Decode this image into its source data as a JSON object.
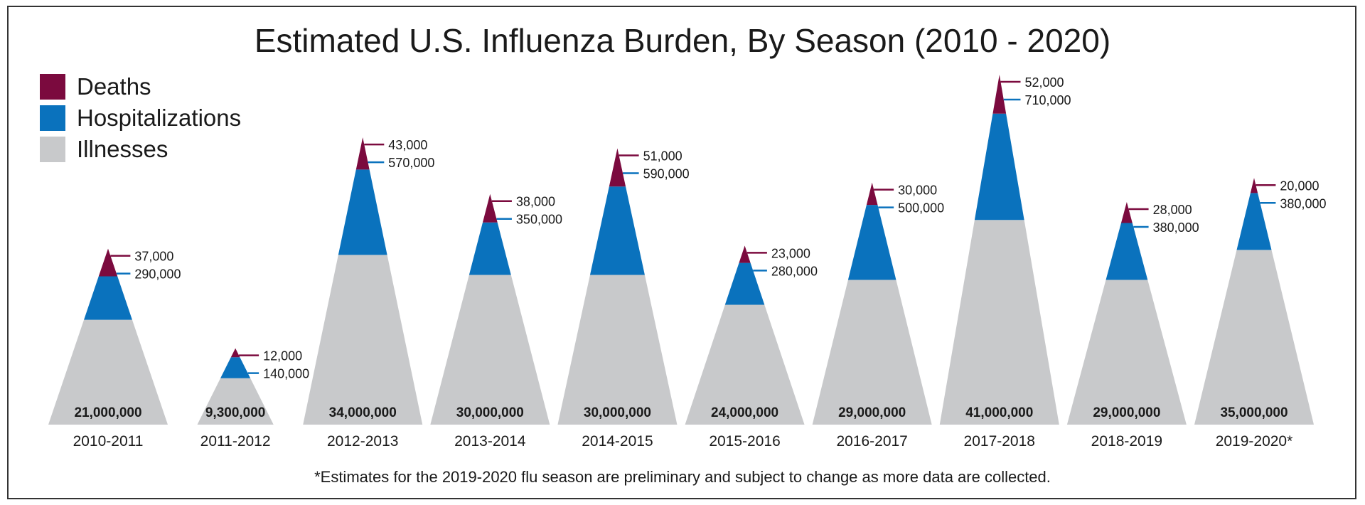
{
  "chart_data": {
    "type": "area",
    "title": "Estimated U.S. Influenza Burden, By Season (2010 - 2020)",
    "legend": [
      {
        "name": "Deaths",
        "color": "#7b0a3e"
      },
      {
        "name": "Hospitalizations",
        "color": "#0a72bd"
      },
      {
        "name": "Illnesses",
        "color": "#c8c9cb"
      }
    ],
    "categories": [
      "2010-2011",
      "2011-2012",
      "2012-2013",
      "2013-2014",
      "2014-2015",
      "2015-2016",
      "2016-2017",
      "2017-2018",
      "2018-2019",
      "2019-2020*"
    ],
    "series": [
      {
        "name": "Illnesses",
        "values": [
          21000000,
          9300000,
          34000000,
          30000000,
          30000000,
          24000000,
          29000000,
          41000000,
          29000000,
          35000000
        ],
        "labels": [
          "21,000,000",
          "9,300,000",
          "34,000,000",
          "30,000,000",
          "30,000,000",
          "24,000,000",
          "29,000,000",
          "41,000,000",
          "29,000,000",
          "35,000,000"
        ]
      },
      {
        "name": "Hospitalizations",
        "values": [
          290000,
          140000,
          570000,
          350000,
          590000,
          280000,
          500000,
          710000,
          380000,
          380000
        ],
        "labels": [
          "290,000",
          "140,000",
          "570,000",
          "350,000",
          "590,000",
          "280,000",
          "500,000",
          "710,000",
          "380,000",
          "380,000"
        ]
      },
      {
        "name": "Deaths",
        "values": [
          37000,
          12000,
          43000,
          38000,
          51000,
          23000,
          30000,
          52000,
          28000,
          20000
        ],
        "labels": [
          "37,000",
          "12,000",
          "43,000",
          "38,000",
          "51,000",
          "23,000",
          "30,000",
          "52,000",
          "28,000",
          "20,000"
        ]
      }
    ]
  },
  "footnote": "*Estimates for the 2019-2020 flu season are preliminary and subject to change as more data are collected."
}
